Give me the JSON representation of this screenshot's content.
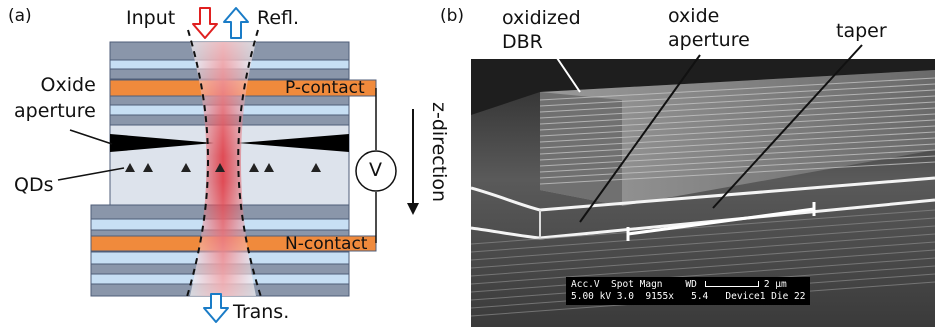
{
  "panel_a": {
    "label": "(a)",
    "input_label": "Input",
    "refl_label": "Refl.",
    "trans_label": "Trans.",
    "p_contact": "P-contact",
    "n_contact": "N-contact",
    "oxide_aperture": "Oxide\naperture",
    "qds": "QDs",
    "voltmeter": "V",
    "z_direction": "z-direction",
    "colors": {
      "input_arrow": "#e02020",
      "refl_arrow": "#1a7cc7",
      "trans_arrow": "#1a7cc7",
      "dbr_dark": "#8a96aa",
      "dbr_light": "#c7dff4",
      "contact": "#f08a3c",
      "cavity": "#dde3ec",
      "mode": "#e0303a"
    }
  },
  "panel_b": {
    "label": "(b)",
    "oxidized_dbr": "oxidized\nDBR",
    "oxide_aperture": "oxide\naperture",
    "taper": "taper",
    "databar": {
      "row1_left": "Acc.V  Spot Magn    WD",
      "scale_label": "2 μm",
      "row2": "5.00 kV 3.0  9155x   5.4   Device1 Die 22"
    }
  }
}
